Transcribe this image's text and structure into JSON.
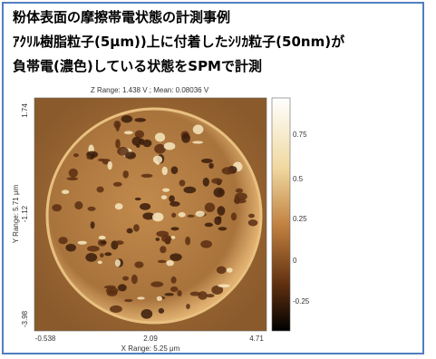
{
  "header": {
    "lines": [
      "粉体表面の摩擦帯電状態の計測事例",
      "ｱｸﾘﾙ樹脂粒子(5μm))上に付着したｼﾘｶ粒子(50nm)が",
      "負帯電(濃色)している状態をSPMで計測"
    ]
  },
  "figure": {
    "z_range": "Z Range: 1.438 V ; Mean: 0.08036 V",
    "y_label": "Y Range: 5.71 μm",
    "y_ticks": [
      "1.74",
      "-1.12",
      "-3.98"
    ],
    "x_label": "X Range: 5.25 μm",
    "x_ticks": [
      "-0.538",
      "2.09",
      "4.71"
    ],
    "colorbar_ticks": [
      "0.75",
      "0.5",
      "0.25",
      "0",
      "-0.25"
    ]
  }
}
